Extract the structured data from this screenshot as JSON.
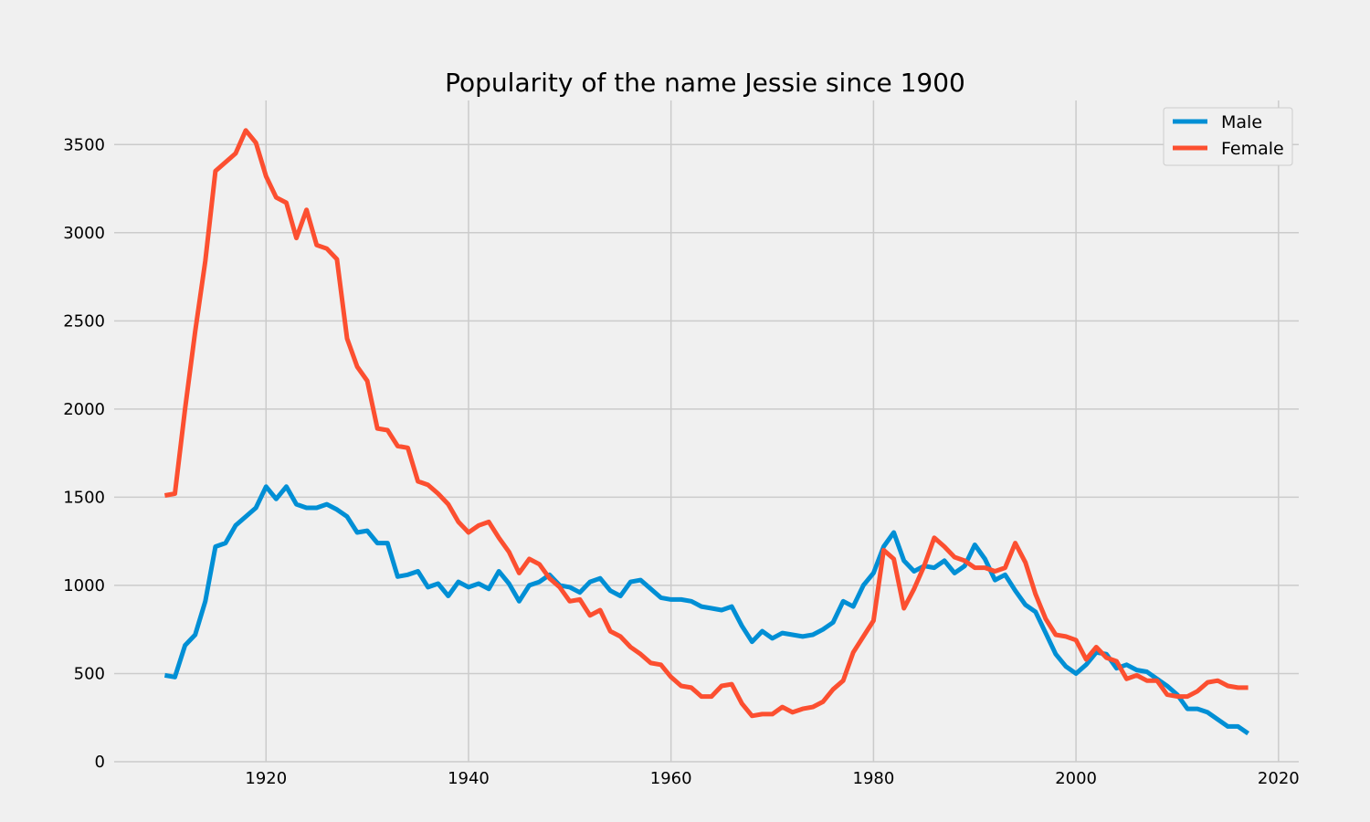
{
  "chart_data": {
    "type": "line",
    "title": "Popularity of the name Jessie since 1900",
    "xlabel": "",
    "ylabel": "",
    "xlim": [
      1905,
      2022
    ],
    "ylim": [
      0,
      3750
    ],
    "xticks": [
      1920,
      1940,
      1960,
      1980,
      2000,
      2020
    ],
    "yticks": [
      0,
      500,
      1000,
      1500,
      2000,
      2500,
      3000,
      3500
    ],
    "grid": true,
    "legend_position": "top-right",
    "x": [
      1910,
      1911,
      1912,
      1913,
      1914,
      1915,
      1916,
      1917,
      1918,
      1919,
      1920,
      1921,
      1922,
      1923,
      1924,
      1925,
      1926,
      1927,
      1928,
      1929,
      1930,
      1931,
      1932,
      1933,
      1934,
      1935,
      1936,
      1937,
      1938,
      1939,
      1940,
      1941,
      1942,
      1943,
      1944,
      1945,
      1946,
      1947,
      1948,
      1949,
      1950,
      1951,
      1952,
      1953,
      1954,
      1955,
      1956,
      1957,
      1958,
      1959,
      1960,
      1961,
      1962,
      1963,
      1964,
      1965,
      1966,
      1967,
      1968,
      1969,
      1970,
      1971,
      1972,
      1973,
      1974,
      1975,
      1976,
      1977,
      1978,
      1979,
      1980,
      1981,
      1982,
      1983,
      1984,
      1985,
      1986,
      1987,
      1988,
      1989,
      1990,
      1991,
      1992,
      1993,
      1994,
      1995,
      1996,
      1997,
      1998,
      1999,
      2000,
      2001,
      2002,
      2003,
      2004,
      2005,
      2006,
      2007,
      2008,
      2009,
      2010,
      2011,
      2012,
      2013,
      2014,
      2015,
      2016,
      2017
    ],
    "series": [
      {
        "name": "Male",
        "color": "#008fd5",
        "values": [
          490,
          480,
          660,
          720,
          910,
          1220,
          1240,
          1340,
          1390,
          1440,
          1560,
          1490,
          1560,
          1460,
          1440,
          1440,
          1460,
          1430,
          1390,
          1300,
          1310,
          1240,
          1240,
          1050,
          1060,
          1080,
          990,
          1010,
          940,
          1020,
          990,
          1010,
          980,
          1080,
          1010,
          910,
          1000,
          1020,
          1060,
          1000,
          990,
          960,
          1020,
          1040,
          970,
          940,
          1020,
          1030,
          980,
          930,
          920,
          920,
          910,
          880,
          870,
          860,
          880,
          770,
          680,
          740,
          700,
          730,
          720,
          710,
          720,
          750,
          790,
          910,
          880,
          1000,
          1070,
          1220,
          1300,
          1140,
          1080,
          1110,
          1100,
          1140,
          1070,
          1110,
          1230,
          1150,
          1030,
          1060,
          970,
          890,
          850,
          730,
          610,
          540,
          500,
          550,
          620,
          610,
          530,
          550,
          520,
          510,
          470,
          430,
          380,
          300,
          300,
          280,
          240,
          200,
          200,
          160
        ]
      },
      {
        "name": "Female",
        "color": "#fc4f30",
        "values": [
          1510,
          1520,
          2000,
          2440,
          2840,
          3350,
          3400,
          3450,
          3580,
          3510,
          3320,
          3200,
          3170,
          2970,
          3130,
          2930,
          2910,
          2850,
          2400,
          2240,
          2160,
          1890,
          1880,
          1790,
          1780,
          1590,
          1570,
          1520,
          1460,
          1360,
          1300,
          1340,
          1360,
          1270,
          1190,
          1070,
          1150,
          1120,
          1040,
          990,
          910,
          920,
          830,
          860,
          740,
          710,
          650,
          610,
          560,
          550,
          480,
          430,
          420,
          370,
          370,
          430,
          440,
          330,
          260,
          270,
          270,
          310,
          280,
          300,
          310,
          340,
          410,
          460,
          620,
          710,
          800,
          1200,
          1150,
          870,
          980,
          1110,
          1270,
          1220,
          1160,
          1140,
          1100,
          1100,
          1080,
          1100,
          1240,
          1130,
          950,
          810,
          720,
          710,
          690,
          580,
          650,
          590,
          570,
          470,
          490,
          460,
          460,
          380,
          370,
          370,
          400,
          450,
          460,
          430,
          420,
          420
        ]
      }
    ]
  }
}
